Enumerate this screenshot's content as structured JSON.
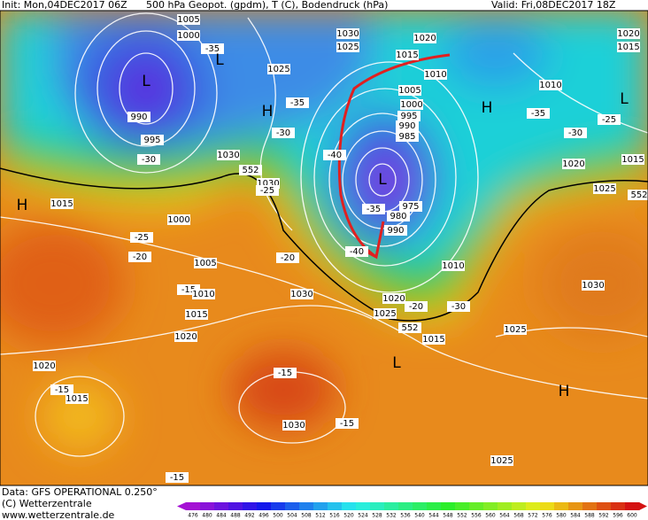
{
  "header": {
    "init": "Init: Mon,04DEC2017 06Z",
    "title": "500 hPa Geopot. (gpdm), T (C), Bodendruck (hPa)",
    "valid": "Valid: Fri,08DEC2017 18Z"
  },
  "footer": {
    "data": "Data: GFS OPERATIONAL 0.250°",
    "copyright": "(C) Wetterzentrale",
    "url": "www.wetterzentrale.de"
  },
  "colorbar": {
    "ticks": [
      476,
      480,
      484,
      488,
      492,
      496,
      500,
      504,
      508,
      512,
      516,
      520,
      524,
      528,
      532,
      536,
      540,
      544,
      548,
      552,
      556,
      560,
      564,
      568,
      572,
      576,
      580,
      584,
      588,
      592,
      596,
      600
    ]
  },
  "map": {
    "labels": [
      "1005",
      "1000",
      "-35",
      "L",
      "1030",
      "1025",
      "1020",
      "1015",
      "1010",
      "1020",
      "1015",
      "1010",
      "L",
      "H",
      "-35",
      "-25",
      "-30",
      "1015",
      "1020",
      "1025",
      "552",
      "L",
      "990",
      "995",
      "-30",
      "1025",
      "H",
      "-35",
      "-30",
      "1030",
      "552",
      "1030",
      "-25",
      "H",
      "1015",
      "1000",
      "-25",
      "-20",
      "1005",
      "-20",
      "-15",
      "1010",
      "1030",
      "1015",
      "1020",
      "1005",
      "1000",
      "995",
      "990",
      "985",
      "-40",
      "L",
      "-35",
      "975",
      "980",
      "990",
      "-40",
      "1010",
      "1030",
      "1020",
      "1025",
      "-20",
      "-30",
      "552",
      "1015",
      "1025",
      "L",
      "-15",
      "1020",
      "1015",
      "-15",
      "H",
      "1030",
      "-15",
      "1025",
      "-15"
    ]
  }
}
